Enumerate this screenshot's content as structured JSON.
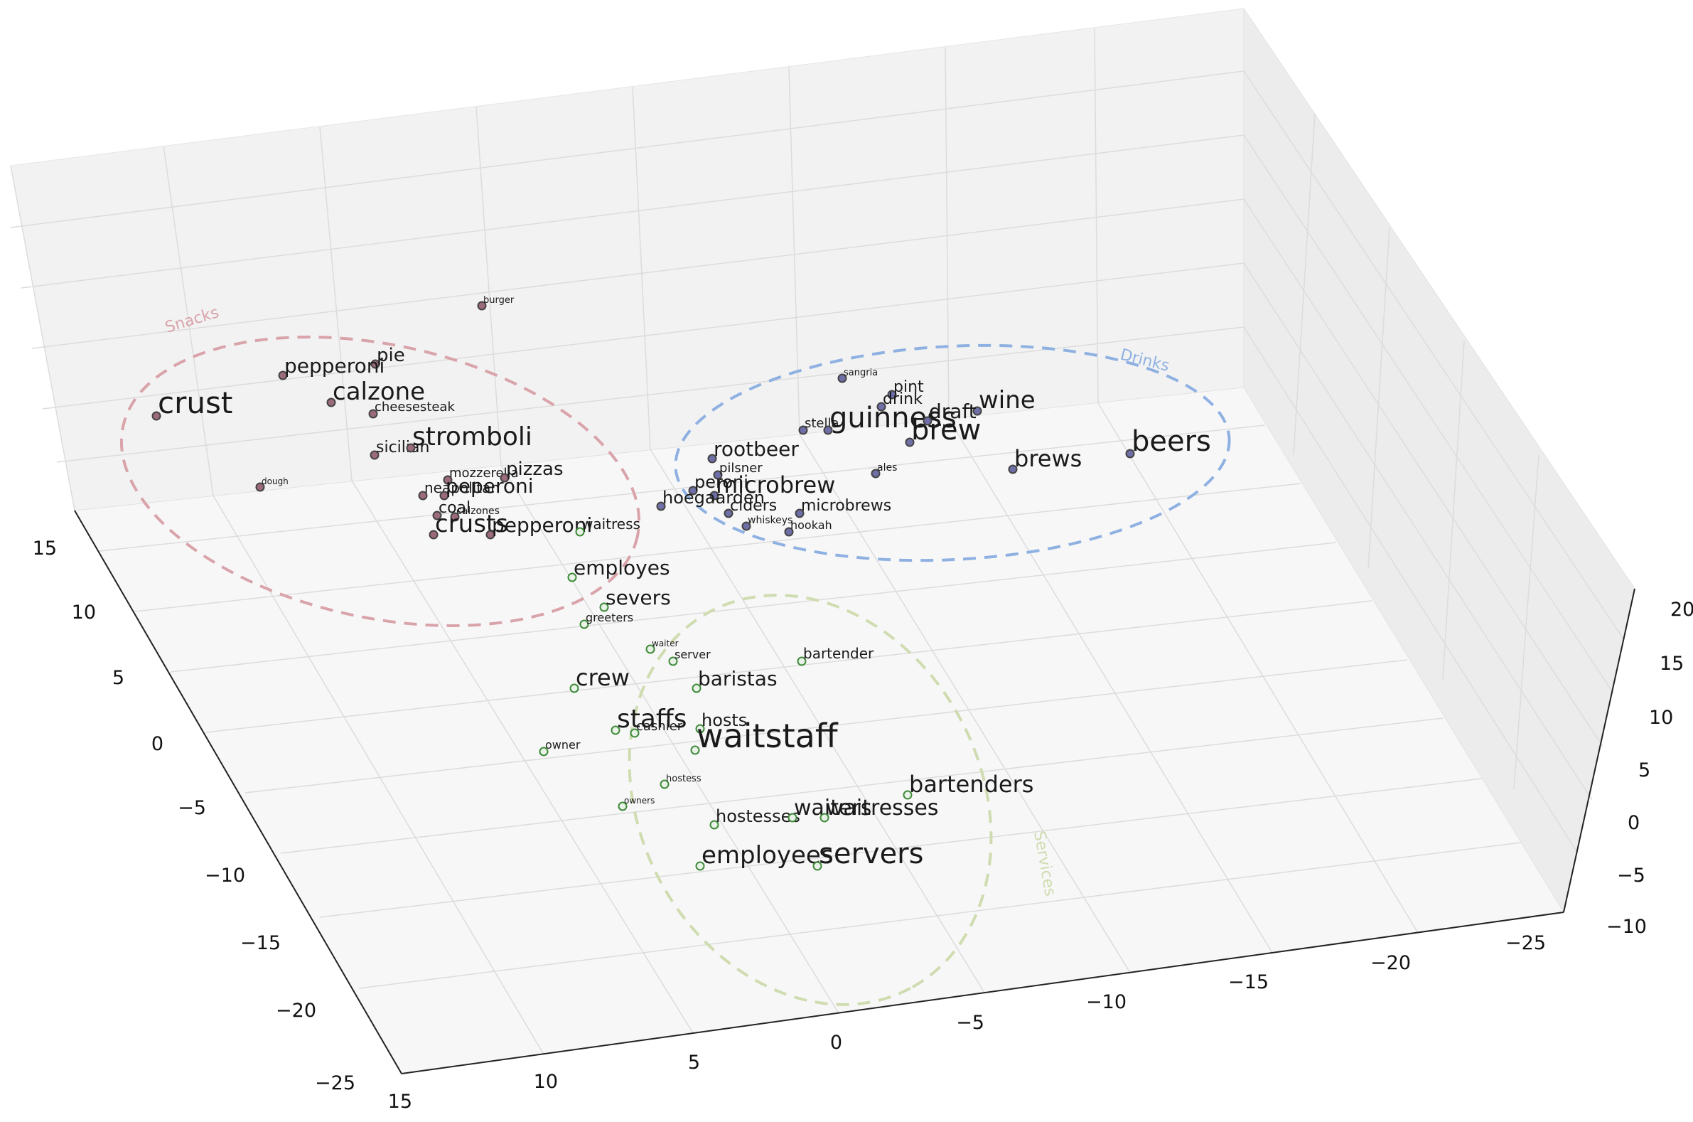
{
  "chart_data": {
    "type": "scatter",
    "dimensions": 3,
    "grid": true,
    "axes": {
      "x_ticks": [
        "15",
        "10",
        "5",
        "0",
        "−5",
        "−10",
        "−15",
        "−20",
        "−25"
      ],
      "y_ticks": [
        "15",
        "10",
        "5",
        "0",
        "−5",
        "−10",
        "−15",
        "−20",
        "−25"
      ],
      "z_ticks": [
        "20",
        "15",
        "10",
        "5",
        "0",
        "−5",
        "−10"
      ]
    },
    "clusters": [
      {
        "label": "Snacks",
        "color": "#d9a3aa"
      },
      {
        "label": "Drinks",
        "color": "#8fb1e2"
      },
      {
        "label": "Services",
        "color": "#cfdcb0"
      }
    ],
    "colors": {
      "snack_point": "#9c6b7a",
      "drink_point": "#6f6fa8",
      "service_point": "#7fb77a"
    },
    "words": [
      {
        "text": "crust",
        "cluster": 0
      },
      {
        "text": "pie",
        "cluster": 0
      },
      {
        "text": "pepperoni",
        "cluster": 0
      },
      {
        "text": "calzone",
        "cluster": 0
      },
      {
        "text": "cheesesteak",
        "cluster": 0
      },
      {
        "text": "burger",
        "cluster": 0
      },
      {
        "text": "sicilian",
        "cluster": 0
      },
      {
        "text": "stromboli",
        "cluster": 0
      },
      {
        "text": "dough",
        "cluster": 0
      },
      {
        "text": "mozzerella",
        "cluster": 0
      },
      {
        "text": "pizzas",
        "cluster": 0
      },
      {
        "text": "neapolitan",
        "cluster": 0
      },
      {
        "text": "peperoni",
        "cluster": 0
      },
      {
        "text": "coal",
        "cluster": 0
      },
      {
        "text": "calzones",
        "cluster": 0
      },
      {
        "text": "crusts",
        "cluster": 0
      },
      {
        "text": "pepperoni",
        "cluster": 0
      },
      {
        "text": "sangria",
        "cluster": 1
      },
      {
        "text": "pint",
        "cluster": 1
      },
      {
        "text": "drink",
        "cluster": 1
      },
      {
        "text": "wine",
        "cluster": 1
      },
      {
        "text": "stella",
        "cluster": 1
      },
      {
        "text": "guinness",
        "cluster": 1
      },
      {
        "text": "draft",
        "cluster": 1
      },
      {
        "text": "brew",
        "cluster": 1
      },
      {
        "text": "beers",
        "cluster": 1
      },
      {
        "text": "rootbeer",
        "cluster": 1
      },
      {
        "text": "brews",
        "cluster": 1
      },
      {
        "text": "ales",
        "cluster": 1
      },
      {
        "text": "pilsner",
        "cluster": 1
      },
      {
        "text": "peroni",
        "cluster": 1
      },
      {
        "text": "microbrew",
        "cluster": 1
      },
      {
        "text": "hoegaarden",
        "cluster": 1
      },
      {
        "text": "ciders",
        "cluster": 1
      },
      {
        "text": "microbrews",
        "cluster": 1
      },
      {
        "text": "whiskeys",
        "cluster": 1
      },
      {
        "text": "hookah",
        "cluster": 1
      },
      {
        "text": "employes",
        "cluster": 2
      },
      {
        "text": "waitress",
        "cluster": 2
      },
      {
        "text": "severs",
        "cluster": 2
      },
      {
        "text": "greeters",
        "cluster": 2
      },
      {
        "text": "waiter",
        "cluster": 2
      },
      {
        "text": "server",
        "cluster": 2
      },
      {
        "text": "bartender",
        "cluster": 2
      },
      {
        "text": "crew",
        "cluster": 2
      },
      {
        "text": "baristas",
        "cluster": 2
      },
      {
        "text": "staffs",
        "cluster": 2
      },
      {
        "text": "hosts",
        "cluster": 2
      },
      {
        "text": "cashier",
        "cluster": 2
      },
      {
        "text": "waitstaff",
        "cluster": 2
      },
      {
        "text": "owner",
        "cluster": 2
      },
      {
        "text": "hostess",
        "cluster": 2
      },
      {
        "text": "owners",
        "cluster": 2
      },
      {
        "text": "bartenders",
        "cluster": 2
      },
      {
        "text": "hostesses",
        "cluster": 2
      },
      {
        "text": "waiters",
        "cluster": 2
      },
      {
        "text": "waitresses",
        "cluster": 2
      },
      {
        "text": "employees",
        "cluster": 2
      },
      {
        "text": "servers",
        "cluster": 2
      }
    ]
  }
}
